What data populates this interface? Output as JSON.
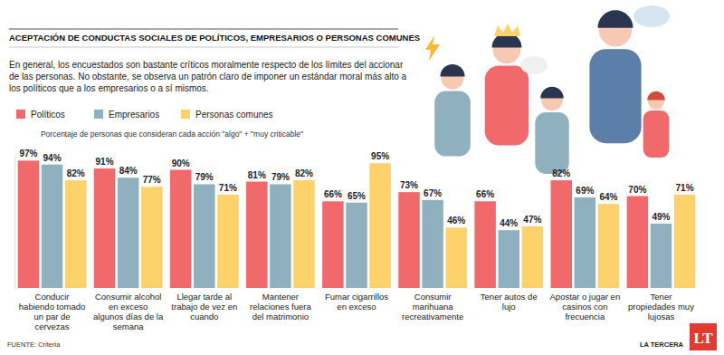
{
  "chart_data": {
    "type": "bar",
    "title": "ACEPTACIÓN DE CONDUCTAS SOCIALES DE POLÍTICOS, EMPRESARIOS O PERSONAS COMUNES",
    "subtitle": "En general, los encuestados son bastante críticos moralmente respecto de los límites del accionar de las personas. No obstante, se observa un patrón claro de imponer un estándar moral más alto a los políticos que a los empresarios o a sí mismos.",
    "note": "Porcentaje de personas que consideran cada acción \"algo\" + \"muy criticable\"",
    "source": "FUENTE: Criteria",
    "publisher": "LA TERCERA",
    "logo": "LT",
    "categories": [
      "Conducir habiendo tomado un par de cervezas",
      "Consumir alcohol en exceso algunos días de la semana",
      "Llegar tarde al trabajo de vez en cuando",
      "Mantener relaciones fuera del matrimonio",
      "Fumar cigarrillos en exceso",
      "Consumir marihuana recreativamente",
      "Tener autos de lujo",
      "Apostar o jugar en casinos con frecuencia",
      "Tener propiedades muy lujosas"
    ],
    "series": [
      {
        "name": "Políticos",
        "color": "#f2696b",
        "values": [
          97,
          91,
          90,
          81,
          66,
          73,
          66,
          82,
          70
        ],
        "value_labels": [
          "97%",
          "91%",
          "90%",
          "81%",
          "66%",
          "73%",
          "66%",
          "82%",
          "70%"
        ]
      },
      {
        "name": "Empresarios",
        "color": "#8fb1bf",
        "values": [
          94,
          84,
          79,
          79,
          65,
          67,
          44,
          69,
          49
        ],
        "value_labels": [
          "94%",
          "84%",
          "79%",
          "79%",
          "65%",
          "67%",
          "44%",
          "69%",
          "49%"
        ]
      },
      {
        "name": "Personas comunes",
        "color": "#fdd26b",
        "values": [
          82,
          77,
          71,
          82,
          95,
          46,
          47,
          64,
          71
        ],
        "value_labels": [
          "82%",
          "77%",
          "71%",
          "82%",
          "95%",
          "46%",
          "47%",
          "64%",
          "71%"
        ]
      }
    ],
    "ylim": [
      0,
      100
    ],
    "data_labels": true,
    "tick_labels": "x",
    "legend": "top-left",
    "grid": false
  }
}
